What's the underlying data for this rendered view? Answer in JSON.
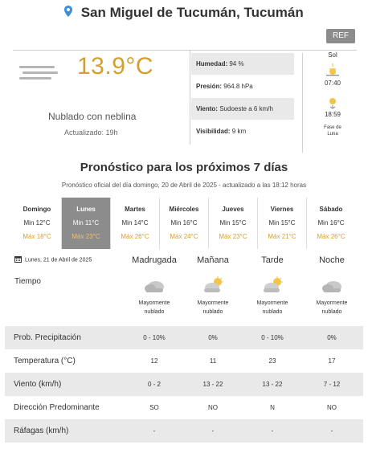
{
  "location": {
    "city": "San Miguel de Tucumán, Tucumán",
    "pin_icon": "location-pin-icon"
  },
  "ref_button": "REF",
  "current": {
    "temp": "13.9°C",
    "desc": "Nublado con neblina",
    "updated": "Actualizado: 19h",
    "icon": "fog-icon",
    "stats": [
      {
        "label": "Humedad:",
        "value": "94 %"
      },
      {
        "label": "Presión:",
        "value": "964.8 hPa"
      },
      {
        "label": "Viento:",
        "value": "Sudoeste a 6 km/h"
      },
      {
        "label": "Visibilidad:",
        "value": "9 km"
      }
    ]
  },
  "sun": {
    "label": "Sol",
    "sunrise": "07:40",
    "sunset": "18:59",
    "moon_line1": "Fase de",
    "moon_line2": "Luna"
  },
  "forecast": {
    "title": "Pronóstico para los próximos 7 días",
    "subtitle": "Pronóstico oficial del día domingo, 20 de Abril de 2025 - actualizado a las 18:12 horas",
    "days": [
      {
        "name": "Domingo",
        "min": "Min 12°C",
        "max": "Máx 18°C"
      },
      {
        "name": "Lunes",
        "min": "Min 11°C",
        "max": "Máx 23°C"
      },
      {
        "name": "Martes",
        "min": "Min 14°C",
        "max": "Máx 26°C"
      },
      {
        "name": "Miércoles",
        "min": "Min 16°C",
        "max": "Máx 24°C"
      },
      {
        "name": "Jueves",
        "min": "Min 15°C",
        "max": "Máx 23°C"
      },
      {
        "name": "Viernes",
        "min": "Min 15°C",
        "max": "Máx 21°C"
      },
      {
        "name": "Sábado",
        "min": "Min 16°C",
        "max": "Máx 26°C"
      }
    ],
    "active_day": "Lunes"
  },
  "detail": {
    "date": "Lunes, 21 de Abril de 2025",
    "columns": [
      "Madrugada",
      "Mañana",
      "Tarde",
      "Noche"
    ],
    "tiempo_label": "Tiempo",
    "weather": [
      {
        "line1": "Mayormente",
        "line2": "nublado",
        "icon": "cloud-moon-icon"
      },
      {
        "line1": "Mayormente",
        "line2": "nublado",
        "icon": "cloud-sun-icon"
      },
      {
        "line1": "Mayormente",
        "line2": "nublado",
        "icon": "cloud-sun-icon"
      },
      {
        "line1": "Mayormente",
        "line2": "nublado",
        "icon": "cloud-moon-icon"
      }
    ],
    "rows": [
      {
        "label": "Prob. Precipitación",
        "values": [
          "0 - 10%",
          "0%",
          "0 - 10%",
          "0%"
        ]
      },
      {
        "label": "Temperatura (°C)",
        "values": [
          "12",
          "11",
          "23",
          "17"
        ]
      },
      {
        "label": "Viento (km/h)",
        "values": [
          "0 - 2",
          "13 - 22",
          "13 - 22",
          "7 - 12"
        ]
      },
      {
        "label": "Dirección Predominante",
        "values": [
          "SO",
          "NO",
          "N",
          "NO"
        ]
      },
      {
        "label": "Ráfagas (km/h)",
        "values": [
          "-",
          "-",
          "-",
          "-"
        ]
      }
    ]
  },
  "colors": {
    "accent": "#d4a02a",
    "active_day_bg": "#8c8c8c",
    "row_shade": "#e9e9e9"
  }
}
